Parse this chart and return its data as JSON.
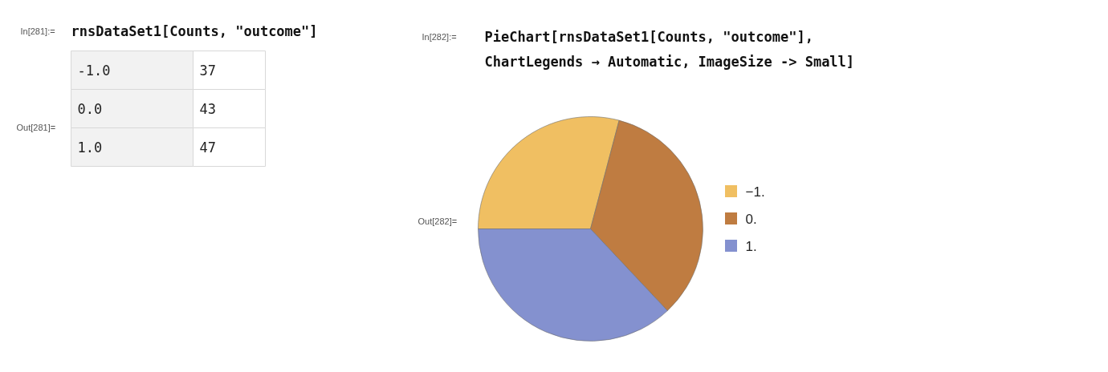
{
  "chart_data": [
    {
      "type": "other",
      "categories": [
        "-1.0",
        "0.0",
        "1.0"
      ],
      "values": [
        37,
        43,
        47
      ],
      "data_labels": true,
      "annotations": [
        "In[281]:=",
        "rnsDataSet1[Counts, \"outcome\"]",
        "Out[281]="
      ]
    },
    {
      "type": "pie",
      "categories": [
        "−1.",
        "0.",
        "1."
      ],
      "values": [
        29.1,
        33.9,
        37.0
      ],
      "colors": [
        "#f0bf62",
        "#bf7c41",
        "#8491cf"
      ],
      "legend": "right",
      "annotations": [
        "In[282]:=",
        "PieChart[rnsDataSet1[Counts, \"outcome\"],",
        "ChartLegends → Automatic, ImageSize -> Small]",
        "Out[282]="
      ]
    }
  ]
}
